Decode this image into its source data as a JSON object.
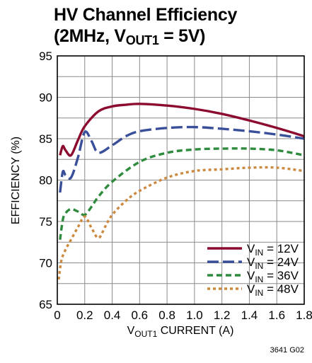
{
  "title_line1": "HV Channel Efficiency",
  "title_line2_pre": "(2MHz, V",
  "title_line2_sub": "OUT1",
  "title_line2_post": " = 5V)",
  "figure_code": "3641 G02",
  "chart_data": {
    "type": "line",
    "title": "HV Channel Efficiency (2MHz, VOUT1 = 5V)",
    "xlabel": "VOUT1 CURRENT (A)",
    "ylabel": "EFFICIENCY (%)",
    "xlabel_main": "V",
    "xlabel_sub": "OUT1",
    "xlabel_rest": " CURRENT (A)",
    "xlim": [
      0,
      1.8
    ],
    "ylim": [
      65,
      95
    ],
    "xticks": [
      "0",
      "0.2",
      "0.4",
      "0.6",
      "0.8",
      "1.0",
      "1.2",
      "1.4",
      "1.6",
      "1.8"
    ],
    "yticks": [
      "65",
      "70",
      "75",
      "80",
      "85",
      "90",
      "95"
    ],
    "grid": true,
    "legend_position": "bottom-right",
    "series": [
      {
        "name": "VIN = 12V",
        "label_sub": "IN",
        "label_rest": " = 12V",
        "color": "#8b0a2e",
        "dash": "solid",
        "points": [
          [
            0.02,
            83.0
          ],
          [
            0.04,
            84.1
          ],
          [
            0.06,
            83.6
          ],
          [
            0.1,
            83.0
          ],
          [
            0.15,
            84.8
          ],
          [
            0.2,
            86.5
          ],
          [
            0.3,
            88.3
          ],
          [
            0.4,
            88.9
          ],
          [
            0.5,
            89.1
          ],
          [
            0.6,
            89.2
          ],
          [
            0.8,
            89.0
          ],
          [
            1.0,
            88.6
          ],
          [
            1.2,
            88.0
          ],
          [
            1.4,
            87.2
          ],
          [
            1.6,
            86.3
          ],
          [
            1.8,
            85.3
          ]
        ]
      },
      {
        "name": "VIN = 24V",
        "label_sub": "IN",
        "label_rest": " = 24V",
        "color": "#3a4f9a",
        "dash": "long",
        "points": [
          [
            0.02,
            78.5
          ],
          [
            0.04,
            81.0
          ],
          [
            0.06,
            80.6
          ],
          [
            0.1,
            80.3
          ],
          [
            0.15,
            82.7
          ],
          [
            0.2,
            85.8
          ],
          [
            0.25,
            84.7
          ],
          [
            0.3,
            83.3
          ],
          [
            0.4,
            84.2
          ],
          [
            0.5,
            85.3
          ],
          [
            0.6,
            85.9
          ],
          [
            0.8,
            86.3
          ],
          [
            1.0,
            86.4
          ],
          [
            1.2,
            86.2
          ],
          [
            1.4,
            85.9
          ],
          [
            1.6,
            85.5
          ],
          [
            1.8,
            85.0
          ]
        ]
      },
      {
        "name": "VIN = 36V",
        "label_sub": "IN",
        "label_rest": " = 36V",
        "color": "#2e8b3e",
        "dash": "medium",
        "points": [
          [
            0.02,
            72.8
          ],
          [
            0.04,
            75.2
          ],
          [
            0.06,
            76.0
          ],
          [
            0.1,
            76.5
          ],
          [
            0.15,
            76.2
          ],
          [
            0.2,
            75.8
          ],
          [
            0.25,
            76.8
          ],
          [
            0.3,
            78.0
          ],
          [
            0.4,
            79.8
          ],
          [
            0.6,
            82.2
          ],
          [
            0.8,
            83.3
          ],
          [
            1.0,
            83.7
          ],
          [
            1.2,
            83.8
          ],
          [
            1.4,
            83.8
          ],
          [
            1.6,
            83.6
          ],
          [
            1.8,
            83.0
          ]
        ]
      },
      {
        "name": "VIN = 48V",
        "label_sub": "IN",
        "label_rest": " = 48V",
        "color": "#cc8a40",
        "dash": "short",
        "points": [
          [
            0.01,
            68.0
          ],
          [
            0.03,
            70.3
          ],
          [
            0.06,
            71.6
          ],
          [
            0.1,
            72.8
          ],
          [
            0.15,
            74.3
          ],
          [
            0.2,
            75.6
          ],
          [
            0.25,
            74.2
          ],
          [
            0.3,
            73.0
          ],
          [
            0.35,
            74.4
          ],
          [
            0.4,
            75.8
          ],
          [
            0.5,
            77.5
          ],
          [
            0.6,
            78.7
          ],
          [
            0.8,
            80.3
          ],
          [
            1.0,
            81.1
          ],
          [
            1.2,
            81.3
          ],
          [
            1.4,
            81.5
          ],
          [
            1.6,
            81.5
          ],
          [
            1.8,
            81.1
          ]
        ]
      }
    ]
  }
}
